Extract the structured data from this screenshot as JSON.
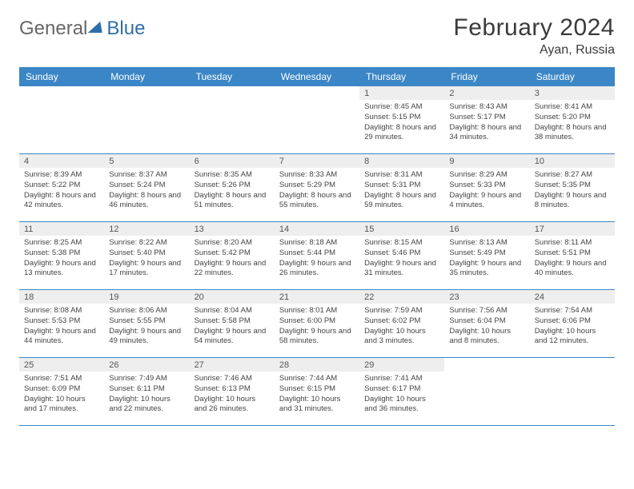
{
  "brand": {
    "word1": "General",
    "word2": "Blue"
  },
  "title": {
    "month": "February 2024",
    "location": "Ayan, Russia"
  },
  "colors": {
    "header_bg": "#3b86c6",
    "header_text": "#ffffff",
    "daynum_bg": "#eeeeee",
    "border": "#3b86c6",
    "text": "#444444",
    "logo_gray": "#666666",
    "logo_blue": "#2f6fa8",
    "page_bg": "#ffffff"
  },
  "weekdays": [
    "Sunday",
    "Monday",
    "Tuesday",
    "Wednesday",
    "Thursday",
    "Friday",
    "Saturday"
  ],
  "weeks": [
    [
      null,
      null,
      null,
      null,
      {
        "n": "1",
        "sr": "8:45 AM",
        "ss": "5:15 PM",
        "dl": "8 hours and 29 minutes."
      },
      {
        "n": "2",
        "sr": "8:43 AM",
        "ss": "5:17 PM",
        "dl": "8 hours and 34 minutes."
      },
      {
        "n": "3",
        "sr": "8:41 AM",
        "ss": "5:20 PM",
        "dl": "8 hours and 38 minutes."
      }
    ],
    [
      {
        "n": "4",
        "sr": "8:39 AM",
        "ss": "5:22 PM",
        "dl": "8 hours and 42 minutes."
      },
      {
        "n": "5",
        "sr": "8:37 AM",
        "ss": "5:24 PM",
        "dl": "8 hours and 46 minutes."
      },
      {
        "n": "6",
        "sr": "8:35 AM",
        "ss": "5:26 PM",
        "dl": "8 hours and 51 minutes."
      },
      {
        "n": "7",
        "sr": "8:33 AM",
        "ss": "5:29 PM",
        "dl": "8 hours and 55 minutes."
      },
      {
        "n": "8",
        "sr": "8:31 AM",
        "ss": "5:31 PM",
        "dl": "8 hours and 59 minutes."
      },
      {
        "n": "9",
        "sr": "8:29 AM",
        "ss": "5:33 PM",
        "dl": "9 hours and 4 minutes."
      },
      {
        "n": "10",
        "sr": "8:27 AM",
        "ss": "5:35 PM",
        "dl": "9 hours and 8 minutes."
      }
    ],
    [
      {
        "n": "11",
        "sr": "8:25 AM",
        "ss": "5:38 PM",
        "dl": "9 hours and 13 minutes."
      },
      {
        "n": "12",
        "sr": "8:22 AM",
        "ss": "5:40 PM",
        "dl": "9 hours and 17 minutes."
      },
      {
        "n": "13",
        "sr": "8:20 AM",
        "ss": "5:42 PM",
        "dl": "9 hours and 22 minutes."
      },
      {
        "n": "14",
        "sr": "8:18 AM",
        "ss": "5:44 PM",
        "dl": "9 hours and 26 minutes."
      },
      {
        "n": "15",
        "sr": "8:15 AM",
        "ss": "5:46 PM",
        "dl": "9 hours and 31 minutes."
      },
      {
        "n": "16",
        "sr": "8:13 AM",
        "ss": "5:49 PM",
        "dl": "9 hours and 35 minutes."
      },
      {
        "n": "17",
        "sr": "8:11 AM",
        "ss": "5:51 PM",
        "dl": "9 hours and 40 minutes."
      }
    ],
    [
      {
        "n": "18",
        "sr": "8:08 AM",
        "ss": "5:53 PM",
        "dl": "9 hours and 44 minutes."
      },
      {
        "n": "19",
        "sr": "8:06 AM",
        "ss": "5:55 PM",
        "dl": "9 hours and 49 minutes."
      },
      {
        "n": "20",
        "sr": "8:04 AM",
        "ss": "5:58 PM",
        "dl": "9 hours and 54 minutes."
      },
      {
        "n": "21",
        "sr": "8:01 AM",
        "ss": "6:00 PM",
        "dl": "9 hours and 58 minutes."
      },
      {
        "n": "22",
        "sr": "7:59 AM",
        "ss": "6:02 PM",
        "dl": "10 hours and 3 minutes."
      },
      {
        "n": "23",
        "sr": "7:56 AM",
        "ss": "6:04 PM",
        "dl": "10 hours and 8 minutes."
      },
      {
        "n": "24",
        "sr": "7:54 AM",
        "ss": "6:06 PM",
        "dl": "10 hours and 12 minutes."
      }
    ],
    [
      {
        "n": "25",
        "sr": "7:51 AM",
        "ss": "6:09 PM",
        "dl": "10 hours and 17 minutes."
      },
      {
        "n": "26",
        "sr": "7:49 AM",
        "ss": "6:11 PM",
        "dl": "10 hours and 22 minutes."
      },
      {
        "n": "27",
        "sr": "7:46 AM",
        "ss": "6:13 PM",
        "dl": "10 hours and 26 minutes."
      },
      {
        "n": "28",
        "sr": "7:44 AM",
        "ss": "6:15 PM",
        "dl": "10 hours and 31 minutes."
      },
      {
        "n": "29",
        "sr": "7:41 AM",
        "ss": "6:17 PM",
        "dl": "10 hours and 36 minutes."
      },
      null,
      null
    ]
  ],
  "labels": {
    "sunrise": "Sunrise: ",
    "sunset": "Sunset: ",
    "daylight": "Daylight: "
  }
}
